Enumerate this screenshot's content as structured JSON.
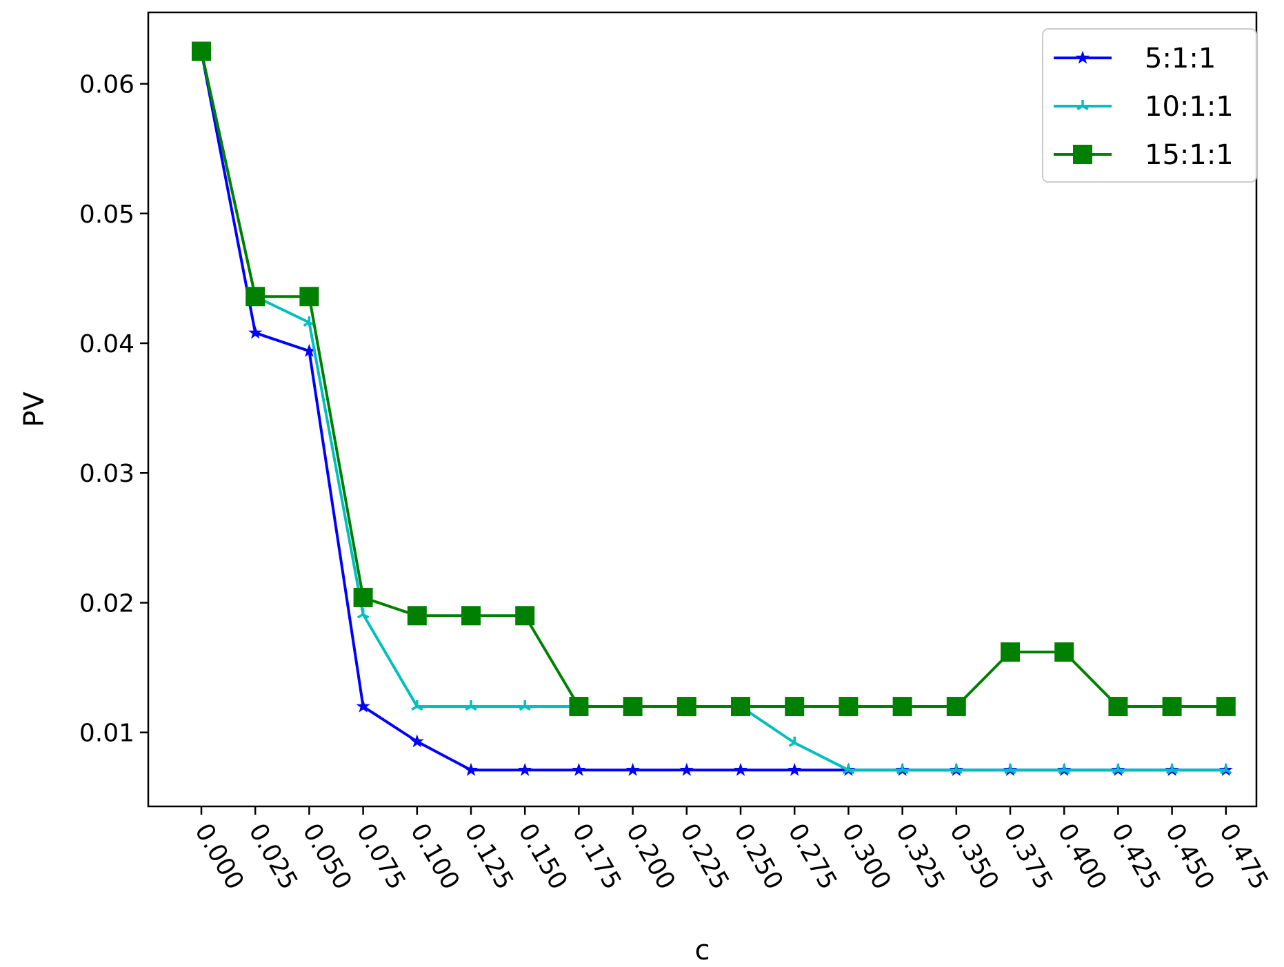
{
  "chart_data": {
    "type": "line",
    "title": "",
    "xlabel": "c",
    "ylabel": "PV",
    "x": [
      0.0,
      0.025,
      0.05,
      0.075,
      0.1,
      0.125,
      0.15,
      0.175,
      0.2,
      0.225,
      0.25,
      0.275,
      0.3,
      0.325,
      0.35,
      0.375,
      0.4,
      0.425,
      0.45,
      0.475
    ],
    "x_tick_labels": [
      "0.000",
      "0.025",
      "0.050",
      "0.075",
      "0.100",
      "0.125",
      "0.150",
      "0.175",
      "0.200",
      "0.225",
      "0.250",
      "0.275",
      "0.300",
      "0.325",
      "0.350",
      "0.375",
      "0.400",
      "0.425",
      "0.450",
      "0.475"
    ],
    "y_ticks": [
      0.01,
      0.02,
      0.03,
      0.04,
      0.05,
      0.06
    ],
    "y_tick_labels": [
      "0.01",
      "0.02",
      "0.03",
      "0.04",
      "0.05",
      "0.06"
    ],
    "ylim": [
      0.0043,
      0.0655
    ],
    "grid": false,
    "legend_position": "top-right",
    "series": [
      {
        "name": "5:1:1",
        "color": "#0000ff",
        "marker": "star",
        "values": [
          0.0625,
          0.0408,
          0.0394,
          0.012,
          0.0093,
          0.0071,
          0.0071,
          0.0071,
          0.0071,
          0.0071,
          0.0071,
          0.0071,
          0.0071,
          0.0071,
          0.0071,
          0.0071,
          0.0071,
          0.0071,
          0.0071,
          0.0071
        ]
      },
      {
        "name": "10:1:1",
        "color": "#00bfbf",
        "marker": "tri",
        "values": [
          0.0625,
          0.0436,
          0.0416,
          0.0191,
          0.012,
          0.012,
          0.012,
          0.012,
          0.012,
          0.012,
          0.012,
          0.0092,
          0.0071,
          0.0071,
          0.0071,
          0.0071,
          0.0071,
          0.0071,
          0.0071,
          0.0071
        ]
      },
      {
        "name": "15:1:1",
        "color": "#008000",
        "marker": "square",
        "values": [
          0.0625,
          0.0436,
          0.0436,
          0.0204,
          0.019,
          0.019,
          0.019,
          0.012,
          0.012,
          0.012,
          0.012,
          0.012,
          0.012,
          0.012,
          0.012,
          0.0162,
          0.0162,
          0.012,
          0.012,
          0.012
        ]
      }
    ]
  }
}
